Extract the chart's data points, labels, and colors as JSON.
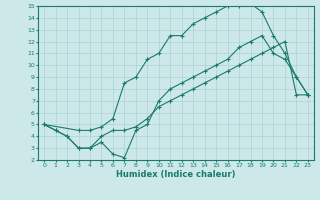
{
  "title": "",
  "xlabel": "Humidex (Indice chaleur)",
  "xlim": [
    -0.5,
    23.5
  ],
  "ylim": [
    2,
    15
  ],
  "xticks": [
    0,
    1,
    2,
    3,
    4,
    5,
    6,
    7,
    8,
    9,
    10,
    11,
    12,
    13,
    14,
    15,
    16,
    17,
    18,
    19,
    20,
    21,
    22,
    23
  ],
  "yticks": [
    2,
    3,
    4,
    5,
    6,
    7,
    8,
    9,
    10,
    11,
    12,
    13,
    14,
    15
  ],
  "color": "#1a7a6e",
  "bg_color": "#cce8e8",
  "line1_x": [
    0,
    3,
    4,
    5,
    6,
    7,
    8,
    9,
    10,
    11,
    12,
    13,
    14,
    15,
    16,
    17,
    18,
    19,
    20,
    21,
    22,
    23
  ],
  "line1_y": [
    5,
    4.5,
    4.5,
    4.8,
    5.5,
    8.5,
    9.0,
    10.5,
    11.0,
    12.5,
    12.5,
    13.5,
    14.0,
    14.5,
    15.0,
    15.0,
    15.2,
    14.5,
    12.5,
    11.0,
    9.0,
    7.5
  ],
  "line2_x": [
    0,
    1,
    2,
    3,
    4,
    5,
    6,
    7,
    8,
    9,
    10,
    11,
    12,
    13,
    14,
    15,
    16,
    17,
    18,
    19,
    20,
    21,
    22,
    23
  ],
  "line2_y": [
    5,
    4.5,
    4.0,
    3.0,
    3.0,
    3.5,
    2.5,
    2.2,
    4.5,
    5.0,
    7.0,
    8.0,
    8.5,
    9.0,
    9.5,
    10.0,
    10.5,
    11.5,
    12.0,
    12.5,
    11.0,
    10.5,
    9.0,
    7.5
  ],
  "line3_x": [
    0,
    1,
    2,
    3,
    4,
    5,
    6,
    7,
    8,
    9,
    10,
    11,
    12,
    13,
    14,
    15,
    16,
    17,
    18,
    19,
    20,
    21,
    22,
    23
  ],
  "line3_y": [
    5,
    4.5,
    4.0,
    3.0,
    3.0,
    4.0,
    4.5,
    4.5,
    4.8,
    5.5,
    6.5,
    7.0,
    7.5,
    8.0,
    8.5,
    9.0,
    9.5,
    10.0,
    10.5,
    11.0,
    11.5,
    12.0,
    7.5,
    7.5
  ]
}
